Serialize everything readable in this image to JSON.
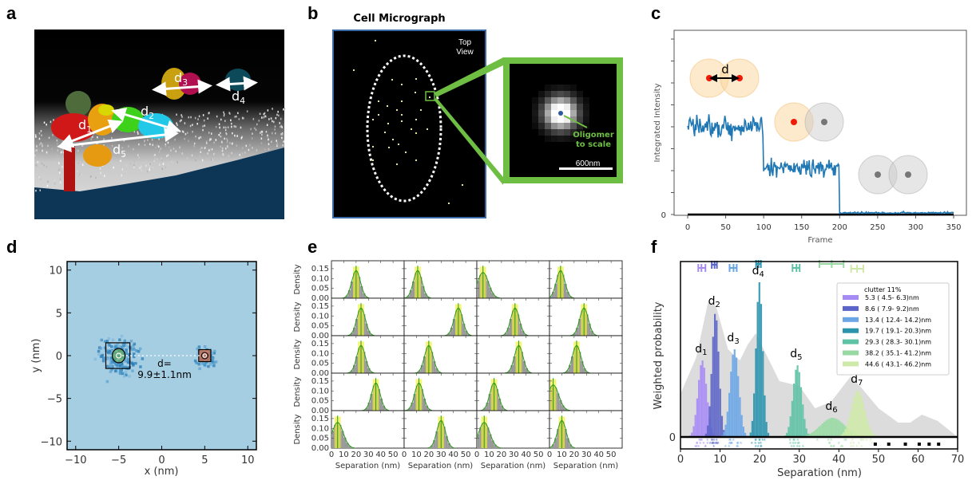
{
  "panel_labels": {
    "a": "a",
    "b": "b",
    "c": "c",
    "d": "d",
    "e": "e",
    "f": "f"
  },
  "panel_a": {
    "distance_labels": [
      {
        "base": "d",
        "sub": "1"
      },
      {
        "base": "d",
        "sub": "2"
      },
      {
        "base": "d",
        "sub": "3"
      },
      {
        "base": "d",
        "sub": "4"
      },
      {
        "base": "d",
        "sub": "5"
      }
    ],
    "colors": {
      "sky": "#000000",
      "membrane": "#c8c8c8",
      "water": "#0d3556"
    }
  },
  "panel_b": {
    "title": "Cell Micrograph",
    "top_view_line1": "Top",
    "top_view_line2": "View",
    "inset_label_line1": "Oligomer",
    "inset_label_line2": "to scale",
    "scale_bar": "600nm",
    "colors": {
      "frame": "#3a6aa8",
      "inset_frame": "#6fbe44",
      "dot": "#fff9b0",
      "oligomer": "#2a5aa0"
    }
  },
  "chart_data": [
    {
      "id": "c",
      "type": "line",
      "title": "",
      "xlabel": "Frame",
      "ylabel": "Integrated Intensity",
      "xlim": [
        0,
        350
      ],
      "x_ticks": [
        "0",
        "50",
        "100",
        "150",
        "200",
        "250",
        "300",
        "350"
      ],
      "y_ticks_labeled": [
        "0"
      ],
      "steps": [
        {
          "from": 0,
          "to": 100,
          "level": 4.0
        },
        {
          "from": 100,
          "to": 200,
          "level": 2.1
        },
        {
          "from": 200,
          "to": 350,
          "level": 0.05
        }
      ],
      "ylim": [
        0,
        8
      ],
      "baseline_label": "d",
      "color": "#1f77b4"
    },
    {
      "id": "d",
      "type": "heatmap",
      "xlabel": "x (nm)",
      "ylabel": "y (nm)",
      "xlim": [
        -11,
        11
      ],
      "ylim": [
        -11,
        11
      ],
      "x_ticks": [
        "−10",
        "−5",
        "0",
        "5",
        "10"
      ],
      "y_ticks": [
        "10",
        "5",
        "0",
        "−5",
        "−10"
      ],
      "clusters": [
        {
          "x": -5.0,
          "y": 0.0
        },
        {
          "x": 5.0,
          "y": 0.0
        }
      ],
      "annotation_line1": "d=",
      "annotation_line2": "9.9±1.1nm"
    },
    {
      "id": "e",
      "type": "bar",
      "xlabel": "Separation (nm)",
      "ylabel": "Density",
      "xlim": [
        0,
        59
      ],
      "ylim": [
        0,
        0.19
      ],
      "x_ticks": [
        "0",
        "10",
        "20",
        "30",
        "40",
        "50"
      ],
      "y_ticks": [
        "0.15",
        "0.10",
        "0.05",
        "0.00"
      ],
      "grid_rows": 5,
      "grid_cols": 4,
      "peaks": [
        [
          20,
          11,
          5,
          9
        ],
        [
          24,
          44,
          31,
          28
        ],
        [
          24,
          20,
          34,
          22
        ],
        [
          36,
          12,
          14,
          3
        ],
        [
          5,
          30,
          6,
          10
        ]
      ]
    },
    {
      "id": "f",
      "type": "bar",
      "xlabel": "Separation (nm)",
      "ylabel": "Weighted probability",
      "xlim": [
        0,
        70
      ],
      "x_ticks": [
        "0",
        "10",
        "20",
        "30",
        "40",
        "50",
        "60",
        "70"
      ],
      "y_ticks": [
        "0"
      ],
      "legend_title": "clutter 11%",
      "legend_position": "upper-right",
      "series": [
        {
          "name": "d1",
          "label": " 5.3 (  4.5-  6.3)nm",
          "center": 5.3,
          "lo": 4.5,
          "hi": 6.3,
          "height": 0.48,
          "color": "#a78bf5"
        },
        {
          "name": "d2",
          "label": " 8.6 (  7.9-  9.2)nm",
          "center": 8.6,
          "lo": 7.9,
          "hi": 9.2,
          "height": 0.78,
          "color": "#5b64c8"
        },
        {
          "name": "d3",
          "label": "13.4 ( 12.4- 14.2)nm",
          "center": 13.4,
          "lo": 12.4,
          "hi": 14.2,
          "height": 0.55,
          "color": "#6aa6e6"
        },
        {
          "name": "d4",
          "label": "19.7 ( 19.1- 20.3)nm",
          "center": 19.7,
          "lo": 19.1,
          "hi": 20.3,
          "height": 0.97,
          "color": "#2a93ae"
        },
        {
          "name": "d5",
          "label": "29.3 ( 28.3- 30.1)nm",
          "center": 29.3,
          "lo": 28.3,
          "hi": 30.1,
          "height": 0.45,
          "color": "#5ec2a4"
        },
        {
          "name": "d6",
          "label": "38.2 ( 35.1- 41.2)nm",
          "center": 38.2,
          "lo": 35.1,
          "hi": 41.2,
          "height": 0.12,
          "color": "#98d9a3"
        },
        {
          "name": "d7",
          "label": "44.6 ( 43.1- 46.2)nm",
          "center": 44.6,
          "lo": 43.1,
          "hi": 46.2,
          "height": 0.29,
          "color": "#cfeaa8"
        }
      ],
      "clutter_squares_x": [
        49.2,
        52.6,
        56.8,
        60.3,
        62.8,
        65.2
      ],
      "background_density_color": "#dcdcdc"
    }
  ]
}
